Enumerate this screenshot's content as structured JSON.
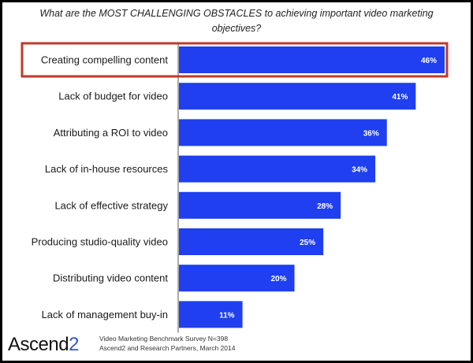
{
  "chart_data": {
    "type": "bar",
    "orientation": "horizontal",
    "title": "What are the MOST CHALLENGING OBSTACLES to achieving important video marketing objectives?",
    "categories": [
      "Creating compelling content",
      "Lack of budget for video",
      "Attributing a ROI to video",
      "Lack of in-house resources",
      "Lack of effective strategy",
      "Producing studio-quality video",
      "Distributing video content",
      "Lack of management buy-in"
    ],
    "values": [
      46,
      41,
      36,
      34,
      28,
      25,
      20,
      11
    ],
    "value_labels": [
      "46%",
      "41%",
      "36%",
      "34%",
      "28%",
      "25%",
      "20%",
      "11%"
    ],
    "highlighted_category": "Creating compelling content",
    "xlim": [
      0,
      46
    ],
    "grid": false,
    "bar_color": "#1f3ff0",
    "highlight_color": "#c0392b"
  },
  "footer": {
    "logo_text": "Ascend",
    "logo_suffix": "2",
    "source_line1": "Video Marketing Benchmark Survey N=398",
    "source_line2": "Ascend2 and Research Partners, March 2014"
  }
}
